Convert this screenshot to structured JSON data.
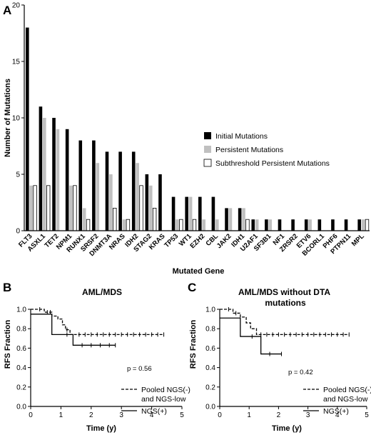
{
  "panels": {
    "a": "A",
    "b": "B",
    "c": "C"
  },
  "chart_data": [
    {
      "type": "bar",
      "xlabel": "Mutated Gene",
      "ylabel": "Number of Mutations",
      "ylim": [
        0,
        20
      ],
      "yticks": [
        0,
        5,
        10,
        15,
        20
      ],
      "legend_position": "right",
      "categories": [
        "FLT3",
        "ASXL1",
        "TET2",
        "NPM1",
        "RUNX1",
        "SRSF2",
        "DNMT3A",
        "NRAS",
        "IDH2",
        "STAG2",
        "KRAS",
        "TP53",
        "WT1",
        "EZH2",
        "CBL",
        "JAK2",
        "IDH1",
        "U2AF1",
        "SF3B1",
        "NF1",
        "ZRSR2",
        "ETV6",
        "BCORL1",
        "PHF6",
        "PTPN11",
        "MPL"
      ],
      "series": [
        {
          "name": "Initial Mutations",
          "color": "#000000",
          "values": [
            18,
            11,
            10,
            9,
            8,
            8,
            7,
            7,
            7,
            5,
            5,
            3,
            3,
            3,
            3,
            2,
            2,
            1,
            1,
            1,
            1,
            1,
            1,
            1,
            1,
            1
          ]
        },
        {
          "name": "Persistent Mutations",
          "color": "#c0c0c0",
          "values": [
            4,
            10,
            9,
            4,
            2,
            6,
            5,
            1,
            6,
            4,
            0,
            1,
            3,
            1,
            1,
            2,
            2,
            1,
            1,
            0,
            0,
            1,
            0,
            0,
            0,
            1
          ]
        },
        {
          "name": "Subthreshold Persistent Mutations",
          "color": "#ffffff",
          "values": [
            4,
            4,
            0,
            4,
            1,
            0,
            2,
            1,
            4,
            2,
            0,
            1,
            1,
            0,
            0,
            0,
            1,
            0,
            0,
            0,
            0,
            0,
            0,
            0,
            0,
            1
          ]
        }
      ]
    },
    {
      "type": "line",
      "title": "AML/MDS",
      "xlabel": "Time (y)",
      "ylabel": "RFS Fraction",
      "xlim": [
        0,
        5
      ],
      "ylim": [
        0,
        1
      ],
      "xticks": [
        0,
        1,
        2,
        3,
        4,
        5
      ],
      "yticks": [
        0.0,
        0.2,
        0.4,
        0.6,
        0.8,
        1.0
      ],
      "annotation": "p = 0.56",
      "series": [
        {
          "name": "Pooled NGS(-) and NGS-low",
          "name_lines": [
            "Pooled NGS(-)",
            "and NGS-low"
          ],
          "style": "dashed",
          "steps": [
            [
              0,
              1.0
            ],
            [
              0.45,
              0.97
            ],
            [
              0.7,
              0.93
            ],
            [
              0.9,
              0.9
            ],
            [
              1.05,
              0.84
            ],
            [
              1.15,
              0.79
            ],
            [
              1.3,
              0.74
            ],
            [
              4.4,
              0.74
            ]
          ],
          "censor": [
            0.3,
            0.55,
            0.65,
            1.2,
            1.6,
            1.8,
            2.0,
            2.2,
            2.4,
            2.6,
            2.8,
            3.0,
            3.2,
            3.4,
            3.6,
            3.8,
            4.0,
            4.2,
            4.4
          ]
        },
        {
          "name": "NGS(+)",
          "style": "solid",
          "steps": [
            [
              0,
              0.95
            ],
            [
              0.7,
              0.74
            ],
            [
              1.2,
              0.74
            ],
            [
              1.4,
              0.63
            ],
            [
              2.8,
              0.63
            ]
          ],
          "censor": [
            1.2,
            1.7,
            2.0,
            2.3,
            2.6,
            2.8
          ]
        }
      ]
    },
    {
      "type": "line",
      "title": "AML/MDS without DTA mutations",
      "title_lines": [
        "AML/MDS without DTA",
        "mutations"
      ],
      "xlabel": "Time (y)",
      "ylabel": "RFS Fraction",
      "xlim": [
        0,
        5
      ],
      "ylim": [
        0,
        1
      ],
      "xticks": [
        0,
        1,
        2,
        3,
        4,
        5
      ],
      "yticks": [
        0.0,
        0.2,
        0.4,
        0.6,
        0.8,
        1.0
      ],
      "annotation": "p = 0.42",
      "series": [
        {
          "name": "Pooled NGS(-) and NGS-low",
          "name_lines": [
            "Pooled NGS(-)",
            "and NGS-low"
          ],
          "style": "dashed",
          "steps": [
            [
              0,
              1.0
            ],
            [
              0.45,
              0.96
            ],
            [
              0.7,
              0.92
            ],
            [
              0.9,
              0.86
            ],
            [
              1.05,
              0.8
            ],
            [
              1.25,
              0.74
            ],
            [
              4.4,
              0.74
            ]
          ],
          "censor": [
            0.3,
            0.55,
            1.4,
            1.6,
            1.8,
            2.0,
            2.2,
            2.4,
            2.6,
            2.8,
            3.0,
            3.2,
            3.4,
            3.6,
            3.8,
            4.0,
            4.2,
            4.4
          ]
        },
        {
          "name": "NGS(+)",
          "style": "solid",
          "steps": [
            [
              0,
              0.91
            ],
            [
              0.7,
              0.72
            ],
            [
              1.4,
              0.54
            ],
            [
              2.1,
              0.54
            ]
          ],
          "censor": [
            1.1,
            1.7,
            2.1
          ]
        }
      ]
    }
  ]
}
